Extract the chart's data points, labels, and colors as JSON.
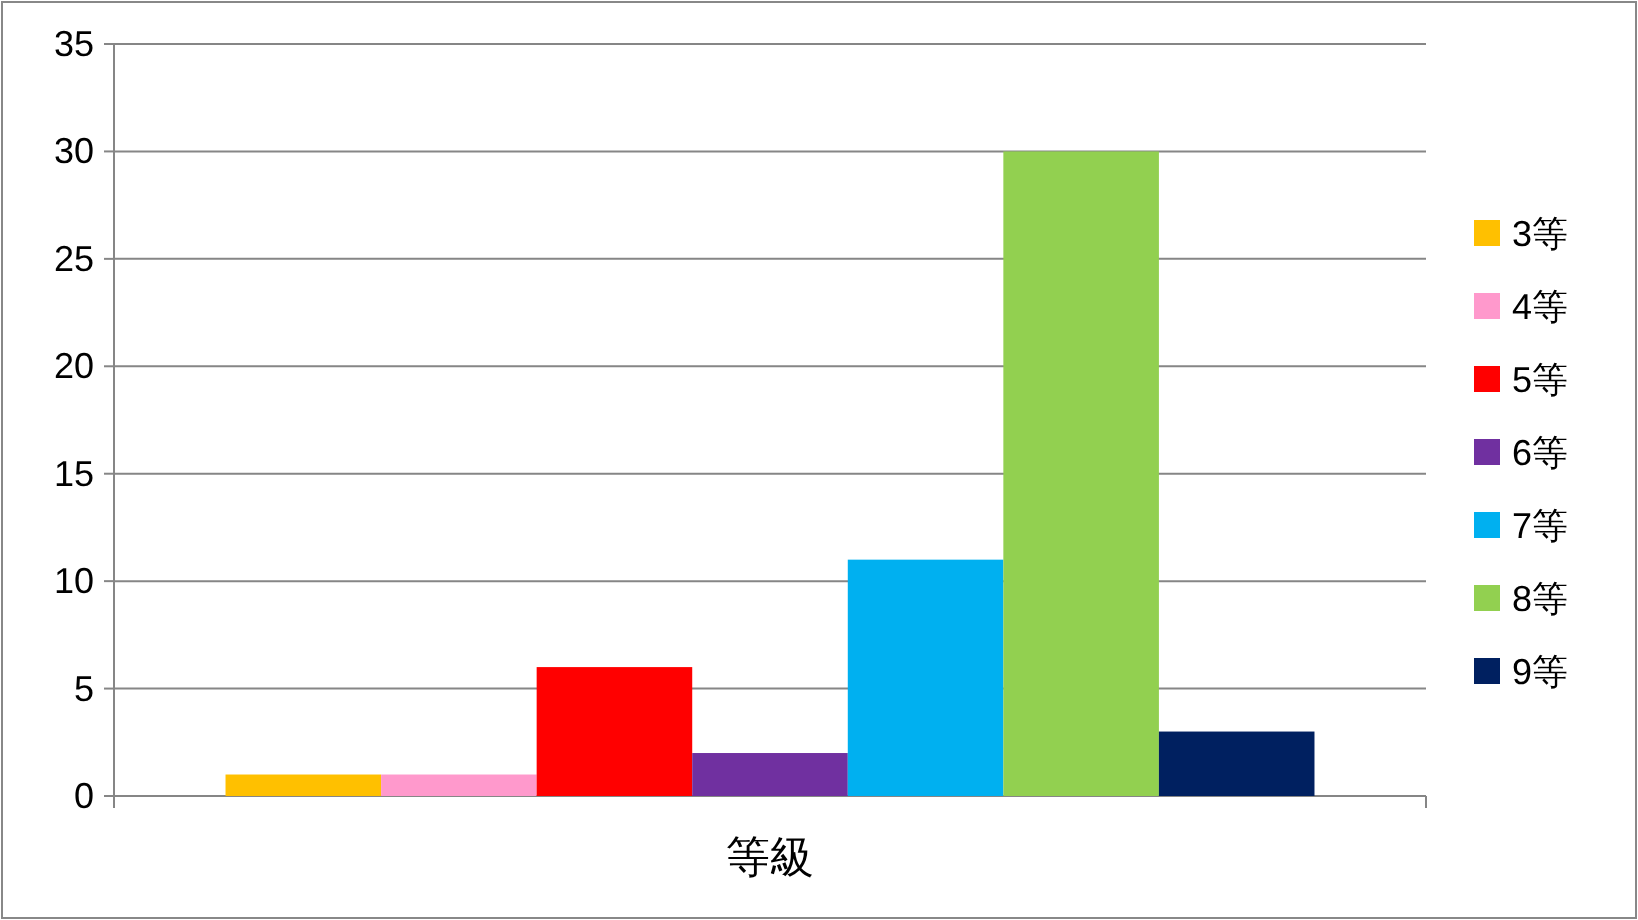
{
  "chart_data": {
    "type": "bar",
    "categories": [
      "等級"
    ],
    "series": [
      {
        "name": "3等",
        "color": "#ffc000",
        "values": [
          1
        ]
      },
      {
        "name": "4等",
        "color": "#ff99cc",
        "values": [
          1
        ]
      },
      {
        "name": "5等",
        "color": "#ff0000",
        "values": [
          6
        ]
      },
      {
        "name": "6等",
        "color": "#7030a0",
        "values": [
          2
        ]
      },
      {
        "name": "7等",
        "color": "#00b0f0",
        "values": [
          11
        ]
      },
      {
        "name": "8等",
        "color": "#92d050",
        "values": [
          30
        ]
      },
      {
        "name": "9等",
        "color": "#002060",
        "values": [
          3
        ]
      }
    ],
    "ylim": [
      0,
      35
    ],
    "yticks": [
      0,
      5,
      10,
      15,
      20,
      25,
      30,
      35
    ],
    "grid": "y",
    "legend": "right"
  }
}
